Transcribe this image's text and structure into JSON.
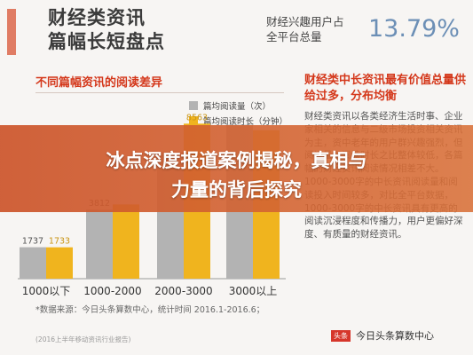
{
  "header": {
    "title_line1": "财经类资讯",
    "title_line2": "篇幅长短盘点",
    "stat_label_line1": "财经兴趣用户占",
    "stat_label_line2": "全平台总量",
    "stat_value": "13.79%"
  },
  "left_heading": "不同篇幅资讯的阅读差异",
  "right_heading": "财经类中长资讯最有价值总量供给过多，分布均衡",
  "right_body": "财经类资讯以各类经济生活时事、企业家相关的信息与二级市场投资相关资讯为主，资中老年的用户群兴趣强烈，但阅读量与阅读时长之比整体较低，各篇幅的财经资讯阅读情况相差不大。1000-3000字的中长资讯阅读量和阅读投入时间较多，对比全平台数据，1000-3000字的中长资讯具有更高的阅读沉浸程度和传播力，用户更偏好深度、有质量的财经资讯。",
  "banner": {
    "line1": "冰点深度报道案例揭秘，真相与",
    "line2": "力量的背后探究"
  },
  "source": "*数据来源：今日头条算数中心，统计时间 2016.1-2016.6；",
  "footer_left": "(2016上半年移动资讯行业报告)",
  "footer_logo": "头条",
  "footer_right": "今日头条算数中心",
  "colors": {
    "series1": "#b3b3b3",
    "series2": "#f0b41e",
    "heading_red": "#d4371a",
    "accent_blue": "#6c8fb6",
    "banner": "#cc542a"
  },
  "chart_data": {
    "type": "bar",
    "categories": [
      "1000以下",
      "1000-2000",
      "2000-3000",
      "3000以上"
    ],
    "series": [
      {
        "name": "篇均阅读量（次）",
        "values": [
          1737,
          3812,
          7000,
          8500
        ]
      },
      {
        "name": "篇均阅读时长（分钟）",
        "values": [
          1733,
          4100,
          8563,
          8200
        ]
      }
    ],
    "data_labels": [
      [
        "1737",
        "3812",
        "",
        ""
      ],
      [
        "1733",
        "",
        "8563",
        ""
      ]
    ],
    "ylim": [
      0,
      10000
    ],
    "legend": "top",
    "grid": false
  }
}
